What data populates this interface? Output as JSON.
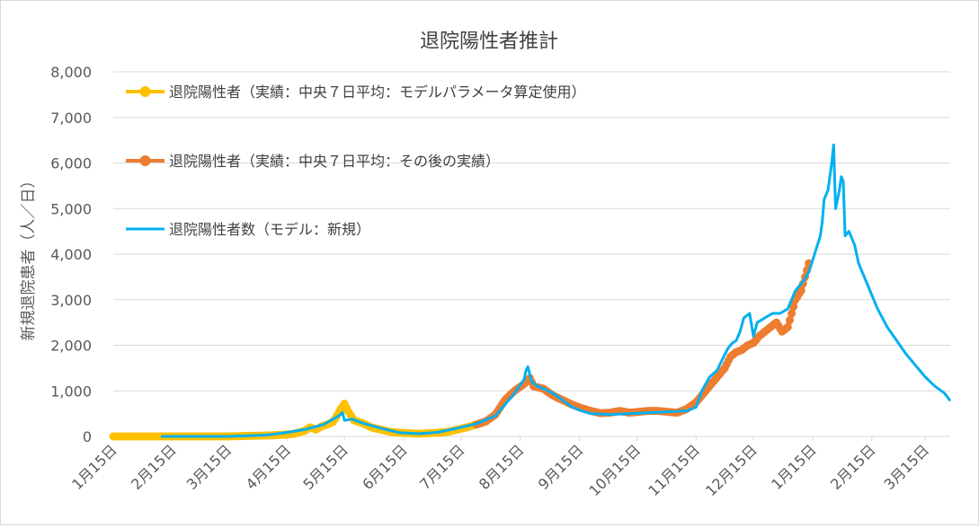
{
  "chart_data": {
    "type": "line",
    "title": "退院陽性者推計",
    "ylabel": "新規退院患者（人／日）",
    "xlabel": "",
    "ylim": [
      0,
      8000
    ],
    "y_ticks": [
      0,
      1000,
      2000,
      3000,
      4000,
      5000,
      6000,
      7000,
      8000
    ],
    "y_tick_labels": [
      "0",
      "1,000",
      "2,000",
      "3,000",
      "4,000",
      "5,000",
      "6,000",
      "7,000",
      "8,000"
    ],
    "x_range_days": [
      0,
      438
    ],
    "x_ticks": [
      {
        "day": 0,
        "label": "1月15日"
      },
      {
        "day": 31,
        "label": "2月15日"
      },
      {
        "day": 60,
        "label": "3月15日"
      },
      {
        "day": 91,
        "label": "4月15日"
      },
      {
        "day": 121,
        "label": "5月15日"
      },
      {
        "day": 152,
        "label": "6月15日"
      },
      {
        "day": 182,
        "label": "7月15日"
      },
      {
        "day": 213,
        "label": "8月15日"
      },
      {
        "day": 244,
        "label": "9月15日"
      },
      {
        "day": 274,
        "label": "10月15日"
      },
      {
        "day": 305,
        "label": "11月15日"
      },
      {
        "day": 335,
        "label": "12月15日"
      },
      {
        "day": 366,
        "label": "1月15日"
      },
      {
        "day": 397,
        "label": "2月15日"
      },
      {
        "day": 425,
        "label": "3月15日"
      }
    ],
    "grid": true,
    "legend_position": "top-left",
    "series": [
      {
        "name": "退院陽性者（実績：中央７日平均：モデルパラメータ算定使用）",
        "color": "#ffc000",
        "style": "line-markers",
        "points": [
          [
            0,
            0
          ],
          [
            10,
            0
          ],
          [
            20,
            0
          ],
          [
            30,
            0
          ],
          [
            40,
            0
          ],
          [
            50,
            0
          ],
          [
            60,
            0
          ],
          [
            70,
            10
          ],
          [
            80,
            20
          ],
          [
            90,
            40
          ],
          [
            95,
            60
          ],
          [
            100,
            120
          ],
          [
            103,
            200
          ],
          [
            106,
            150
          ],
          [
            109,
            220
          ],
          [
            112,
            260
          ],
          [
            115,
            320
          ],
          [
            117,
            450
          ],
          [
            119,
            600
          ],
          [
            121,
            720
          ],
          [
            123,
            550
          ],
          [
            126,
            350
          ],
          [
            130,
            300
          ],
          [
            135,
            200
          ],
          [
            140,
            150
          ],
          [
            145,
            100
          ],
          [
            150,
            80
          ],
          [
            155,
            70
          ],
          [
            160,
            60
          ],
          [
            165,
            70
          ],
          [
            170,
            80
          ],
          [
            175,
            100
          ],
          [
            180,
            150
          ],
          [
            185,
            200
          ],
          [
            190,
            260
          ],
          [
            195,
            330
          ]
        ]
      },
      {
        "name": "退院陽性者（実績：中央７日平均：その後の実績）",
        "color": "#ed7d31",
        "style": "line-markers",
        "points": [
          [
            190,
            260
          ],
          [
            195,
            330
          ],
          [
            200,
            480
          ],
          [
            205,
            800
          ],
          [
            210,
            1000
          ],
          [
            215,
            1150
          ],
          [
            218,
            1280
          ],
          [
            220,
            1100
          ],
          [
            225,
            1050
          ],
          [
            230,
            900
          ],
          [
            235,
            800
          ],
          [
            240,
            700
          ],
          [
            245,
            620
          ],
          [
            250,
            560
          ],
          [
            255,
            510
          ],
          [
            260,
            520
          ],
          [
            265,
            560
          ],
          [
            270,
            520
          ],
          [
            275,
            540
          ],
          [
            280,
            560
          ],
          [
            285,
            560
          ],
          [
            290,
            540
          ],
          [
            295,
            520
          ],
          [
            300,
            600
          ],
          [
            305,
            750
          ],
          [
            310,
            1000
          ],
          [
            315,
            1250
          ],
          [
            320,
            1500
          ],
          [
            323,
            1750
          ],
          [
            326,
            1850
          ],
          [
            329,
            1900
          ],
          [
            332,
            2000
          ],
          [
            335,
            2050
          ],
          [
            338,
            2200
          ],
          [
            341,
            2300
          ],
          [
            344,
            2400
          ],
          [
            347,
            2500
          ],
          [
            350,
            2300
          ],
          [
            353,
            2400
          ],
          [
            355,
            2700
          ],
          [
            357,
            3000
          ],
          [
            360,
            3200
          ],
          [
            362,
            3500
          ],
          [
            364,
            3800
          ]
        ]
      },
      {
        "name": "退院陽性者数（モデル：新規）",
        "color": "#00b0f0",
        "style": "line",
        "points": [
          [
            25,
            0
          ],
          [
            60,
            0
          ],
          [
            80,
            30
          ],
          [
            90,
            80
          ],
          [
            100,
            150
          ],
          [
            110,
            260
          ],
          [
            118,
            450
          ],
          [
            120,
            520
          ],
          [
            121,
            350
          ],
          [
            125,
            380
          ],
          [
            130,
            300
          ],
          [
            140,
            180
          ],
          [
            150,
            80
          ],
          [
            160,
            60
          ],
          [
            170,
            90
          ],
          [
            180,
            180
          ],
          [
            190,
            280
          ],
          [
            200,
            450
          ],
          [
            205,
            700
          ],
          [
            210,
            950
          ],
          [
            215,
            1250
          ],
          [
            216,
            1450
          ],
          [
            217,
            1530
          ],
          [
            219,
            1200
          ],
          [
            222,
            1100
          ],
          [
            225,
            1050
          ],
          [
            230,
            950
          ],
          [
            235,
            800
          ],
          [
            240,
            650
          ],
          [
            245,
            560
          ],
          [
            250,
            500
          ],
          [
            260,
            480
          ],
          [
            270,
            500
          ],
          [
            280,
            520
          ],
          [
            290,
            540
          ],
          [
            300,
            560
          ],
          [
            305,
            640
          ],
          [
            308,
            1000
          ],
          [
            312,
            1300
          ],
          [
            316,
            1450
          ],
          [
            320,
            1800
          ],
          [
            322,
            1950
          ],
          [
            324,
            2050
          ],
          [
            326,
            2100
          ],
          [
            328,
            2300
          ],
          [
            330,
            2600
          ],
          [
            333,
            2700
          ],
          [
            335,
            2200
          ],
          [
            337,
            2500
          ],
          [
            339,
            2550
          ],
          [
            341,
            2600
          ],
          [
            345,
            2700
          ],
          [
            349,
            2700
          ],
          [
            351,
            2750
          ],
          [
            353,
            2800
          ],
          [
            357,
            3200
          ],
          [
            361,
            3400
          ],
          [
            364,
            3600
          ],
          [
            367,
            4000
          ],
          [
            370,
            4400
          ],
          [
            371,
            4700
          ],
          [
            372,
            5200
          ],
          [
            374,
            5400
          ],
          [
            376,
            6000
          ],
          [
            377,
            6400
          ],
          [
            378,
            5000
          ],
          [
            380,
            5400
          ],
          [
            381,
            5700
          ],
          [
            382,
            5600
          ],
          [
            383,
            4400
          ],
          [
            385,
            4500
          ],
          [
            388,
            4200
          ],
          [
            390,
            3800
          ],
          [
            395,
            3300
          ],
          [
            400,
            2800
          ],
          [
            405,
            2400
          ],
          [
            410,
            2100
          ],
          [
            415,
            1800
          ],
          [
            420,
            1550
          ],
          [
            425,
            1300
          ],
          [
            430,
            1100
          ],
          [
            435,
            950
          ],
          [
            438,
            780
          ]
        ]
      }
    ]
  }
}
